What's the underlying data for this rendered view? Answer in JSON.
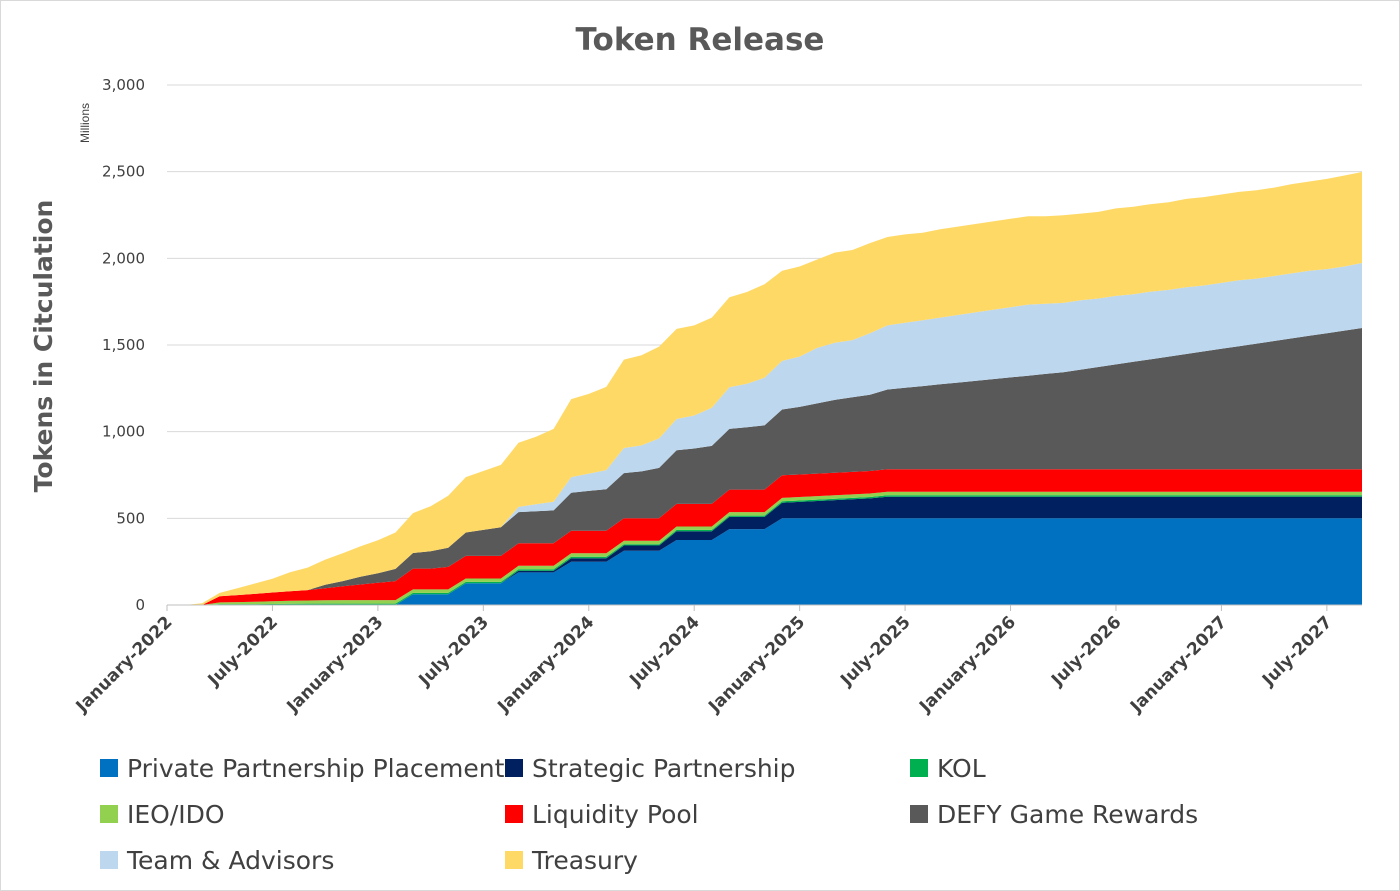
{
  "chart_data": {
    "type": "area",
    "stacked": true,
    "title": "Token Release",
    "ylabel": "Tokens in Citculation",
    "yunit": "Millions",
    "xlabel": "",
    "ylim": [
      0,
      3000
    ],
    "yticks": [
      0,
      500,
      1000,
      1500,
      2000,
      2500,
      3000
    ],
    "ytick_labels": [
      "0",
      "500",
      "1,000",
      "1,500",
      "2,000",
      "2,500",
      "3,000"
    ],
    "xlim": [
      0,
      68
    ],
    "xticks": [
      0,
      6,
      12,
      18,
      24,
      30,
      36,
      42,
      48,
      54,
      60,
      66
    ],
    "xtick_labels": [
      "January-2022",
      "July-2022",
      "January-2023",
      "July-2023",
      "January-2024",
      "July-2024",
      "January-2025",
      "July-2025",
      "January-2026",
      "July-2026",
      "January-2027",
      "July-2027"
    ],
    "x": [
      0,
      1,
      2,
      3,
      4,
      5,
      6,
      7,
      8,
      9,
      10,
      11,
      12,
      13,
      14,
      15,
      16,
      17,
      18,
      19,
      20,
      21,
      22,
      23,
      24,
      25,
      26,
      27,
      28,
      29,
      30,
      31,
      32,
      33,
      34,
      35,
      36,
      37,
      38,
      39,
      40,
      41,
      42,
      43,
      44,
      45,
      46,
      47,
      48,
      49,
      50,
      51,
      52,
      53,
      54,
      55,
      56,
      57,
      58,
      59,
      60,
      61,
      62,
      63,
      64,
      65,
      66,
      67,
      68
    ],
    "series": [
      {
        "name": "Private Partnership Placement",
        "color": "#0070C0",
        "values": [
          0,
          0,
          0,
          0,
          0,
          0,
          0,
          0,
          0,
          0,
          0,
          0,
          0,
          0,
          62,
          62,
          62,
          125,
          125,
          125,
          188,
          188,
          188,
          250,
          250,
          250,
          313,
          313,
          313,
          375,
          375,
          375,
          438,
          438,
          438,
          500,
          500,
          500,
          500,
          500,
          500,
          500,
          500,
          500,
          500,
          500,
          500,
          500,
          500,
          500,
          500,
          500,
          500,
          500,
          500,
          500,
          500,
          500,
          500,
          500,
          500,
          500,
          500,
          500,
          500,
          500,
          500,
          500,
          500
        ]
      },
      {
        "name": "Strategic Partnership",
        "color": "#002060",
        "values": [
          0,
          0,
          0,
          0,
          0,
          0,
          0,
          0,
          0,
          0,
          0,
          0,
          0,
          0,
          0,
          0,
          0,
          0,
          0,
          0,
          10,
          10,
          10,
          20,
          20,
          20,
          30,
          30,
          30,
          50,
          50,
          50,
          70,
          70,
          70,
          90,
          95,
          100,
          105,
          110,
          115,
          125,
          125,
          125,
          125,
          125,
          125,
          125,
          125,
          125,
          125,
          125,
          125,
          125,
          125,
          125,
          125,
          125,
          125,
          125,
          125,
          125,
          125,
          125,
          125,
          125,
          125,
          125,
          125
        ]
      },
      {
        "name": "KOL",
        "color": "#00B050",
        "values": [
          0,
          0,
          0,
          5,
          5,
          5,
          6,
          7,
          8,
          8,
          8,
          8,
          8,
          8,
          8,
          8,
          8,
          8,
          8,
          8,
          8,
          8,
          8,
          8,
          8,
          8,
          8,
          8,
          8,
          8,
          8,
          8,
          8,
          8,
          8,
          8,
          8,
          8,
          8,
          8,
          8,
          8,
          8,
          8,
          8,
          8,
          8,
          8,
          8,
          8,
          8,
          8,
          8,
          8,
          8,
          8,
          8,
          8,
          8,
          8,
          8,
          8,
          8,
          8,
          8,
          8,
          8,
          8,
          8
        ]
      },
      {
        "name": "IEO/IDO",
        "color": "#92D050",
        "values": [
          0,
          0,
          0,
          10,
          12,
          14,
          16,
          17,
          18,
          19,
          20,
          20,
          20,
          20,
          20,
          20,
          20,
          20,
          20,
          20,
          20,
          20,
          20,
          20,
          20,
          20,
          20,
          20,
          20,
          20,
          20,
          20,
          20,
          20,
          20,
          20,
          20,
          20,
          20,
          20,
          20,
          20,
          20,
          20,
          20,
          20,
          20,
          20,
          20,
          20,
          20,
          20,
          20,
          20,
          20,
          20,
          20,
          20,
          20,
          20,
          20,
          20,
          20,
          20,
          20,
          20,
          20,
          20,
          20
        ]
      },
      {
        "name": "Liquidity Pool",
        "color": "#FF0000",
        "values": [
          0,
          0,
          0,
          35,
          40,
          45,
          50,
          55,
          60,
          70,
          80,
          90,
          100,
          110,
          120,
          120,
          130,
          130,
          130,
          130,
          130,
          130,
          130,
          130,
          130,
          130,
          130,
          130,
          130,
          130,
          130,
          130,
          130,
          130,
          130,
          130,
          130,
          130,
          130,
          130,
          130,
          130,
          130,
          130,
          130,
          130,
          130,
          130,
          130,
          130,
          130,
          130,
          130,
          130,
          130,
          130,
          130,
          130,
          130,
          130,
          130,
          130,
          130,
          130,
          130,
          130,
          130,
          130,
          130
        ]
      },
      {
        "name": "DEFY Game Rewards",
        "color": "#595959",
        "values": [
          0,
          0,
          0,
          0,
          0,
          0,
          0,
          0,
          0,
          20,
          30,
          45,
          55,
          70,
          90,
          100,
          110,
          135,
          150,
          165,
          180,
          185,
          190,
          220,
          230,
          240,
          260,
          270,
          290,
          310,
          320,
          335,
          350,
          360,
          370,
          380,
          390,
          405,
          420,
          430,
          440,
          460,
          470,
          480,
          490,
          500,
          510,
          520,
          530,
          540,
          550,
          560,
          575,
          590,
          605,
          620,
          635,
          650,
          665,
          680,
          695,
          710,
          725,
          740,
          755,
          770,
          785,
          800,
          815
        ]
      },
      {
        "name": "Team & Advisors",
        "color": "#BDD7EE",
        "values": [
          0,
          0,
          0,
          0,
          0,
          0,
          0,
          0,
          0,
          0,
          0,
          0,
          0,
          0,
          0,
          0,
          0,
          0,
          0,
          0,
          30,
          40,
          50,
          90,
          100,
          110,
          145,
          150,
          170,
          180,
          190,
          220,
          240,
          250,
          275,
          280,
          290,
          320,
          330,
          330,
          355,
          370,
          375,
          380,
          385,
          390,
          395,
          400,
          405,
          410,
          405,
          400,
          400,
          395,
          395,
          390,
          390,
          385,
          385,
          380,
          380,
          380,
          375,
          375,
          375,
          375,
          370,
          370,
          375
        ]
      },
      {
        "name": "Treasury",
        "color": "#FFD966",
        "values": [
          0,
          0,
          10,
          20,
          40,
          60,
          80,
          110,
          130,
          145,
          160,
          175,
          190,
          210,
          230,
          260,
          300,
          320,
          340,
          360,
          370,
          390,
          420,
          450,
          460,
          480,
          510,
          520,
          530,
          520,
          520,
          520,
          520,
          530,
          540,
          520,
          520,
          510,
          520,
          520,
          520,
          510,
          510,
          505,
          510,
          510,
          510,
          510,
          510,
          510,
          505,
          505,
          500,
          500,
          505,
          505,
          505,
          505,
          510,
          510,
          510,
          510,
          510,
          510,
          515,
          515,
          520,
          525,
          525
        ]
      }
    ],
    "legend": [
      "Private Partnership Placement",
      "Strategic Partnership",
      "KOL",
      "IEO/IDO",
      "Liquidity Pool",
      "DEFY Game Rewards",
      "Team & Advisors",
      "Treasury"
    ],
    "legend_position": "bottom",
    "grid": true
  }
}
